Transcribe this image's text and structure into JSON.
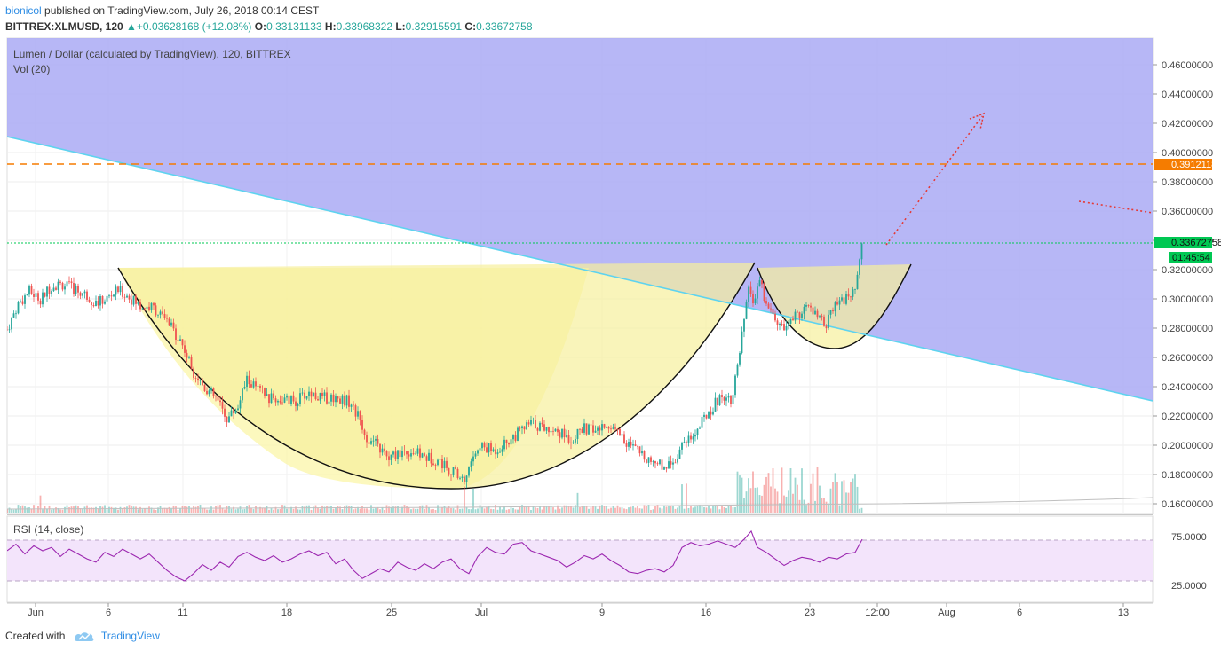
{
  "header": {
    "author": "bionicol",
    "published_text": " published on TradingView.com, July 26, 2018 00:14 CEST"
  },
  "symbol_line": {
    "symbol": "BITTREX:XLMUSD, 120",
    "change_arrow": "▲",
    "change": "+0.03628168 (+12.08%)",
    "o_label": "O:",
    "o_value": "0.33131133",
    "h_label": "H:",
    "h_value": "0.33968322",
    "l_label": "L:",
    "l_value": "0.32915591",
    "c_label": "C:",
    "c_value": "0.33672758"
  },
  "pane_legend": {
    "title": "Lumen / Dollar (calculated by TradingView), 120, BITTREX",
    "volume": "Vol (20)",
    "rsi": "RSI (14, close)"
  },
  "price_axis": {
    "labels": [
      "0.46000000",
      "0.44000000",
      "0.42000000",
      "0.40000000",
      "0.38000000",
      "0.36000000",
      "0.34000000",
      "0.32000000",
      "0.30000000",
      "0.28000000",
      "0.26000000",
      "0.24000000",
      "0.22000000",
      "0.20000000",
      "0.18000000",
      "0.16000000"
    ],
    "horizontal_line_label": "0.39121180",
    "last_price_label": "0.33672758",
    "countdown_label": "01:45:54"
  },
  "rsi_axis": {
    "labels": [
      "75.0000",
      "25.0000"
    ]
  },
  "time_axis": {
    "labels": [
      "Jun",
      "6",
      "11",
      "18",
      "25",
      "Jul",
      "9",
      "16",
      "23",
      "12:00",
      "Aug",
      "6",
      "13"
    ]
  },
  "footer": {
    "created_with": "Created with",
    "brand": "TradingView"
  },
  "colors": {
    "purple_zone": "#aaaaf5",
    "cup_fill": "#fbf5a8",
    "trendline": "#5ed3ef",
    "resistance": "#f57c00",
    "last_price": "#00c853",
    "projection": "#e53935",
    "rsi_line": "#9c27b0",
    "rsi_band": "#f3e4fb"
  },
  "chart_data": {
    "type": "candlestick",
    "symbol": "BITTREX:XLMUSD",
    "interval": "120",
    "y_range": [
      0.155,
      0.475
    ],
    "x_ticks": [
      "Jun",
      "6",
      "11",
      "18",
      "25",
      "Jul",
      "9",
      "16",
      "23",
      "12:00",
      "Aug",
      "6",
      "13"
    ],
    "last_close": 0.33672758,
    "horizontal_level": 0.3912118,
    "close_path": [
      [
        0,
        0.279
      ],
      [
        12,
        0.296
      ],
      [
        25,
        0.305
      ],
      [
        38,
        0.3
      ],
      [
        50,
        0.309
      ],
      [
        62,
        0.31
      ],
      [
        75,
        0.307
      ],
      [
        88,
        0.303
      ],
      [
        100,
        0.297
      ],
      [
        112,
        0.3
      ],
      [
        125,
        0.306
      ],
      [
        138,
        0.301
      ],
      [
        150,
        0.295
      ],
      [
        165,
        0.294
      ],
      [
        180,
        0.284
      ],
      [
        195,
        0.272
      ],
      [
        210,
        0.25
      ],
      [
        222,
        0.24
      ],
      [
        235,
        0.232
      ],
      [
        248,
        0.218
      ],
      [
        260,
        0.227
      ],
      [
        270,
        0.245
      ],
      [
        282,
        0.238
      ],
      [
        295,
        0.232
      ],
      [
        310,
        0.231
      ],
      [
        325,
        0.23
      ],
      [
        340,
        0.236
      ],
      [
        355,
        0.232
      ],
      [
        370,
        0.233
      ],
      [
        385,
        0.23
      ],
      [
        397,
        0.218
      ],
      [
        405,
        0.205
      ],
      [
        418,
        0.199
      ],
      [
        430,
        0.19
      ],
      [
        440,
        0.195
      ],
      [
        455,
        0.196
      ],
      [
        470,
        0.192
      ],
      [
        485,
        0.19
      ],
      [
        500,
        0.183
      ],
      [
        515,
        0.176
      ],
      [
        525,
        0.193
      ],
      [
        535,
        0.199
      ],
      [
        548,
        0.196
      ],
      [
        560,
        0.201
      ],
      [
        575,
        0.208
      ],
      [
        590,
        0.215
      ],
      [
        605,
        0.212
      ],
      [
        620,
        0.21
      ],
      [
        635,
        0.204
      ],
      [
        650,
        0.211
      ],
      [
        665,
        0.21
      ],
      [
        680,
        0.214
      ],
      [
        690,
        0.208
      ],
      [
        700,
        0.2
      ],
      [
        712,
        0.195
      ],
      [
        725,
        0.19
      ],
      [
        740,
        0.186
      ],
      [
        752,
        0.19
      ],
      [
        762,
        0.203
      ],
      [
        775,
        0.208
      ],
      [
        790,
        0.223
      ],
      [
        805,
        0.234
      ],
      [
        815,
        0.232
      ],
      [
        822,
        0.25
      ],
      [
        830,
        0.285
      ],
      [
        836,
        0.308
      ],
      [
        842,
        0.295
      ],
      [
        848,
        0.315
      ],
      [
        852,
        0.3
      ],
      [
        858,
        0.292
      ],
      [
        866,
        0.286
      ],
      [
        874,
        0.278
      ],
      [
        882,
        0.285
      ],
      [
        892,
        0.29
      ],
      [
        902,
        0.295
      ],
      [
        912,
        0.288
      ],
      [
        922,
        0.282
      ],
      [
        932,
        0.294
      ],
      [
        942,
        0.3
      ],
      [
        952,
        0.302
      ],
      [
        958,
        0.315
      ],
      [
        963,
        0.337
      ]
    ],
    "rsi": {
      "levels": [
        75,
        25
      ],
      "values": [
        [
          0,
          62
        ],
        [
          10,
          70
        ],
        [
          20,
          58
        ],
        [
          30,
          68
        ],
        [
          40,
          62
        ],
        [
          50,
          66
        ],
        [
          60,
          55
        ],
        [
          70,
          64
        ],
        [
          80,
          58
        ],
        [
          90,
          52
        ],
        [
          100,
          48
        ],
        [
          110,
          60
        ],
        [
          120,
          55
        ],
        [
          130,
          64
        ],
        [
          140,
          58
        ],
        [
          150,
          52
        ],
        [
          160,
          58
        ],
        [
          170,
          48
        ],
        [
          180,
          38
        ],
        [
          190,
          30
        ],
        [
          200,
          25
        ],
        [
          210,
          34
        ],
        [
          220,
          45
        ],
        [
          230,
          38
        ],
        [
          240,
          48
        ],
        [
          250,
          42
        ],
        [
          260,
          55
        ],
        [
          270,
          60
        ],
        [
          280,
          54
        ],
        [
          290,
          50
        ],
        [
          300,
          56
        ],
        [
          310,
          48
        ],
        [
          320,
          52
        ],
        [
          330,
          58
        ],
        [
          340,
          62
        ],
        [
          350,
          56
        ],
        [
          360,
          60
        ],
        [
          370,
          46
        ],
        [
          380,
          52
        ],
        [
          390,
          38
        ],
        [
          400,
          28
        ],
        [
          410,
          34
        ],
        [
          420,
          40
        ],
        [
          430,
          36
        ],
        [
          440,
          48
        ],
        [
          450,
          42
        ],
        [
          460,
          38
        ],
        [
          470,
          46
        ],
        [
          480,
          40
        ],
        [
          490,
          48
        ],
        [
          500,
          52
        ],
        [
          510,
          40
        ],
        [
          520,
          34
        ],
        [
          530,
          55
        ],
        [
          540,
          66
        ],
        [
          550,
          60
        ],
        [
          560,
          58
        ],
        [
          570,
          70
        ],
        [
          580,
          72
        ],
        [
          590,
          62
        ],
        [
          600,
          58
        ],
        [
          610,
          54
        ],
        [
          620,
          50
        ],
        [
          630,
          42
        ],
        [
          640,
          48
        ],
        [
          650,
          56
        ],
        [
          660,
          52
        ],
        [
          670,
          58
        ],
        [
          680,
          50
        ],
        [
          690,
          44
        ],
        [
          700,
          36
        ],
        [
          710,
          34
        ],
        [
          720,
          38
        ],
        [
          730,
          40
        ],
        [
          740,
          36
        ],
        [
          750,
          44
        ],
        [
          760,
          66
        ],
        [
          770,
          72
        ],
        [
          780,
          68
        ],
        [
          790,
          70
        ],
        [
          800,
          74
        ],
        [
          810,
          70
        ],
        [
          820,
          66
        ],
        [
          830,
          76
        ],
        [
          838,
          86
        ],
        [
          845,
          66
        ],
        [
          855,
          60
        ],
        [
          865,
          52
        ],
        [
          875,
          44
        ],
        [
          885,
          50
        ],
        [
          895,
          54
        ],
        [
          905,
          52
        ],
        [
          915,
          48
        ],
        [
          925,
          54
        ],
        [
          935,
          52
        ],
        [
          945,
          58
        ],
        [
          955,
          60
        ],
        [
          963,
          76
        ]
      ]
    }
  }
}
